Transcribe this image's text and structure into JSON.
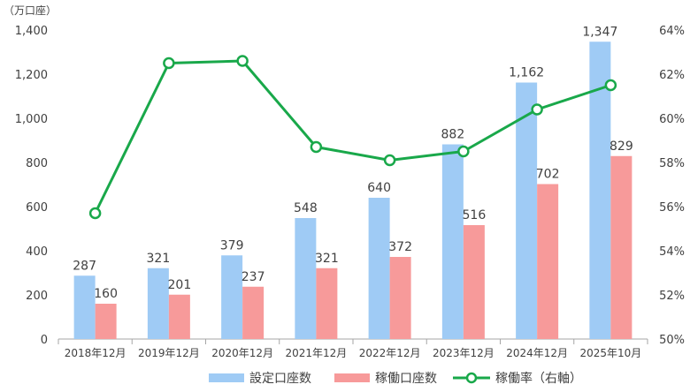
{
  "chart_data": {
    "type": "bar",
    "unit_label": "（万口座）",
    "categories": [
      "2018年12月",
      "2019年12月",
      "2020年12月",
      "2021年12月",
      "2022年12月",
      "2023年12月",
      "2024年12月",
      "2025年10月"
    ],
    "series": [
      {
        "name": "設定口座数",
        "type": "bar",
        "axis": "left",
        "color": "#9fcbf5",
        "values": [
          287,
          321,
          379,
          548,
          640,
          882,
          1162,
          1347
        ],
        "labels": [
          "287",
          "321",
          "379",
          "548",
          "640",
          "882",
          "1,162",
          "1,347"
        ]
      },
      {
        "name": "稼働口座数",
        "type": "bar",
        "axis": "left",
        "color": "#f79a9a",
        "values": [
          160,
          201,
          237,
          321,
          372,
          516,
          702,
          829
        ],
        "labels": [
          "160",
          "201",
          "237",
          "321",
          "372",
          "516",
          "702",
          "829"
        ]
      },
      {
        "name": "稼働率（右軸）",
        "type": "line",
        "axis": "right",
        "color": "#19a84a",
        "values": [
          55.7,
          62.5,
          62.6,
          58.7,
          58.1,
          58.5,
          60.4,
          61.5
        ]
      }
    ],
    "left_axis": {
      "min": 0,
      "max": 1400,
      "ticks": [
        0,
        200,
        400,
        600,
        800,
        1000,
        1200,
        1400
      ],
      "tick_labels": [
        "0",
        "200",
        "400",
        "600",
        "800",
        "1,000",
        "1,200",
        "1,400"
      ]
    },
    "right_axis": {
      "min": 50,
      "max": 64,
      "ticks": [
        50,
        52,
        54,
        56,
        58,
        60,
        62,
        64
      ],
      "tick_labels": [
        "50%",
        "52%",
        "54%",
        "56%",
        "58%",
        "60%",
        "62%",
        "64%"
      ]
    },
    "legend": [
      "設定口座数",
      "稼働口座数",
      "稼働率（右軸）"
    ],
    "legend_position": "bottom",
    "grid": false
  }
}
